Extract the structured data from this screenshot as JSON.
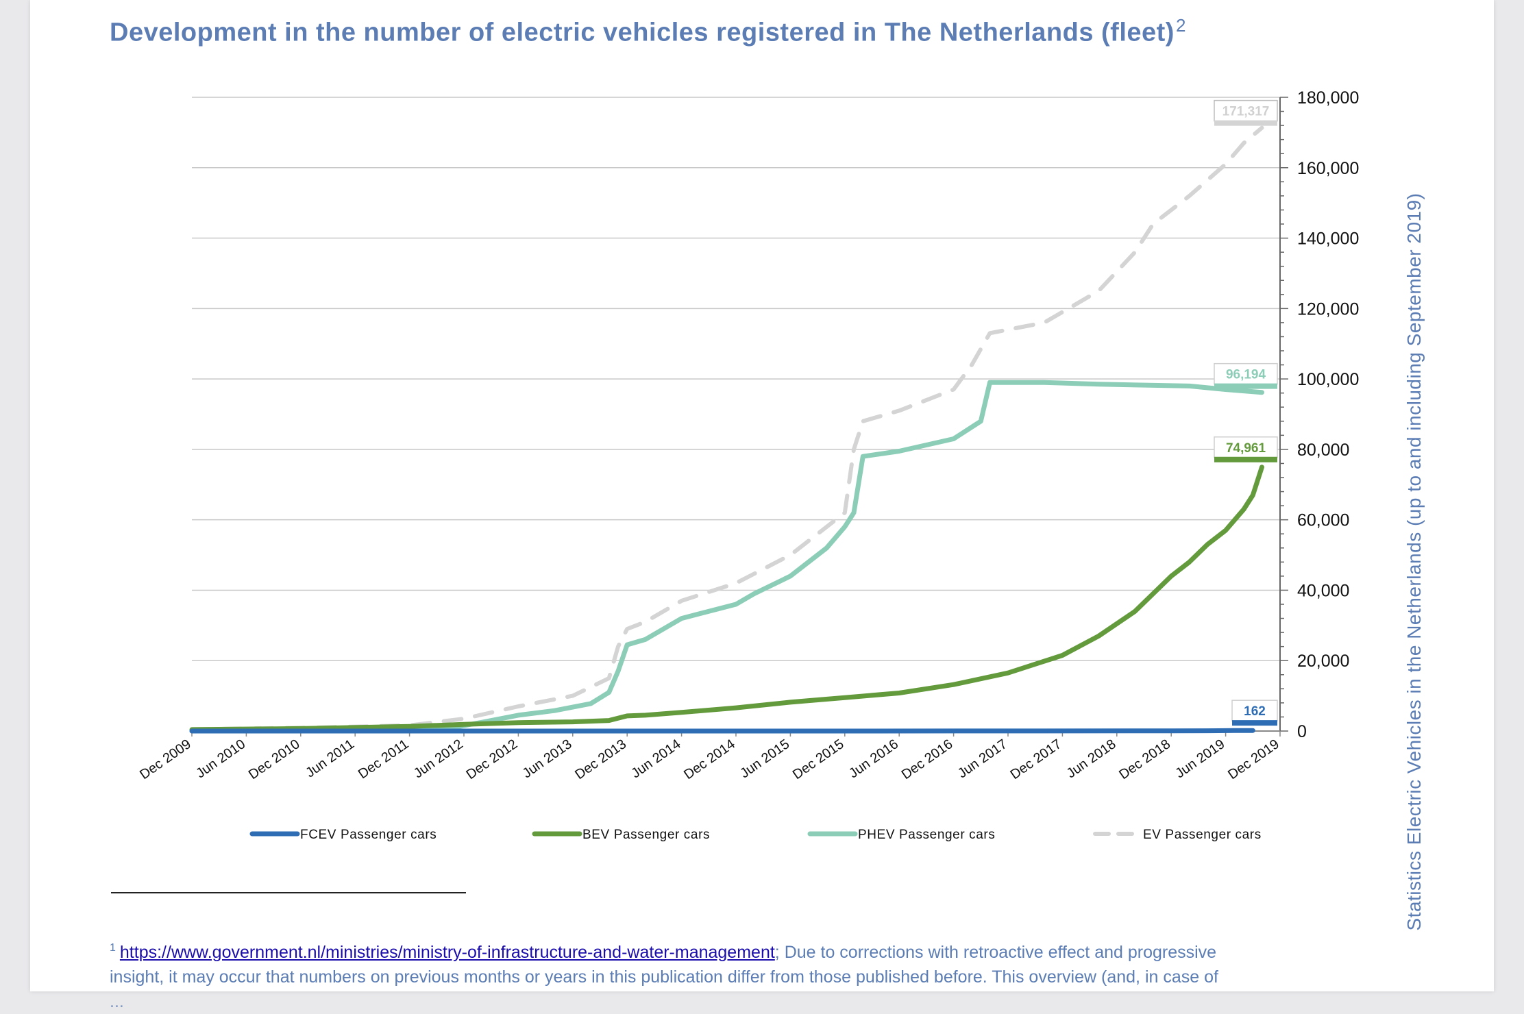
{
  "title": "Development in the number of electric vehicles registered in The Netherlands (fleet)",
  "title_footnote_marker": "2",
  "y_axis_title": "Statistics Electric Vehicles in the Netherlands (up to and including September 2019)",
  "footnote": {
    "marker": "1",
    "link_text": "https://www.government.nl/ministries/ministry-of-infrastructure-and-water-management",
    "text_line1": "; Due to corrections with retroactive effect and progressive",
    "text_line2": "insight, it may occur that numbers on previous months or years in this publication differ from those published before. This overview (and, in case of",
    "text_line3_partial": "..."
  },
  "chart_data": {
    "type": "line",
    "title": "Development in the number of electric vehicles registered in The Netherlands (fleet)",
    "ylabel": "Statistics Electric Vehicles in the Netherlands (up to and including September 2019)",
    "ylim": [
      0,
      180000
    ],
    "y_ticks": [
      0,
      20000,
      40000,
      60000,
      80000,
      100000,
      120000,
      140000,
      160000,
      180000
    ],
    "y_tick_labels": [
      "0",
      "20,000",
      "40,000",
      "60,000",
      "80,000",
      "100,000",
      "120,000",
      "140,000",
      "160,000",
      "180,000"
    ],
    "x_tick_labels": [
      "Dec 2009",
      "Jun 2010",
      "Dec 2010",
      "Jun 2011",
      "Dec 2011",
      "Jun 2012",
      "Dec 2012",
      "Jun 2013",
      "Dec 2013",
      "Jun 2014",
      "Dec 2014",
      "Jun 2015",
      "Dec 2015",
      "Jun 2016",
      "Dec 2016",
      "Jun 2017",
      "Dec 2017",
      "Jun 2018",
      "Dec 2018",
      "Jun 2019",
      "Dec 2019"
    ],
    "x_unit": "months since Dec 2009",
    "x_range": [
      0,
      120
    ],
    "legend_position": "bottom",
    "grid": true,
    "series": [
      {
        "name": "FCEV Passenger cars",
        "color": "#2e6db4",
        "style": "solid",
        "end_label": "162",
        "points": [
          [
            0,
            0
          ],
          [
            30,
            0
          ],
          [
            60,
            0
          ],
          [
            90,
            20
          ],
          [
            108,
            60
          ],
          [
            112,
            70
          ],
          [
            115,
            140
          ],
          [
            117,
            162
          ]
        ]
      },
      {
        "name": "BEV Passenger cars",
        "color": "#639a3c",
        "style": "solid",
        "end_label": "74,961",
        "points": [
          [
            0,
            400
          ],
          [
            12,
            700
          ],
          [
            24,
            1300
          ],
          [
            30,
            1900
          ],
          [
            36,
            2400
          ],
          [
            42,
            2600
          ],
          [
            46,
            3000
          ],
          [
            48,
            4300
          ],
          [
            50,
            4500
          ],
          [
            54,
            5300
          ],
          [
            60,
            6600
          ],
          [
            66,
            8200
          ],
          [
            72,
            9500
          ],
          [
            78,
            10800
          ],
          [
            84,
            13200
          ],
          [
            90,
            16500
          ],
          [
            96,
            21500
          ],
          [
            100,
            27000
          ],
          [
            104,
            34000
          ],
          [
            106,
            39000
          ],
          [
            108,
            44000
          ],
          [
            110,
            48000
          ],
          [
            112,
            53000
          ],
          [
            114,
            57000
          ],
          [
            116,
            63000
          ],
          [
            117,
            67000
          ],
          [
            118,
            74961
          ]
        ]
      },
      {
        "name": "PHEV Passenger cars",
        "color": "#8ccdb8",
        "style": "solid",
        "end_label": "96,194",
        "points": [
          [
            0,
            100
          ],
          [
            24,
            200
          ],
          [
            28,
            600
          ],
          [
            32,
            2500
          ],
          [
            36,
            4500
          ],
          [
            40,
            5800
          ],
          [
            44,
            7800
          ],
          [
            46,
            11000
          ],
          [
            47,
            17000
          ],
          [
            48,
            24500
          ],
          [
            50,
            26000
          ],
          [
            54,
            32000
          ],
          [
            60,
            36000
          ],
          [
            62,
            39000
          ],
          [
            66,
            44000
          ],
          [
            68,
            48000
          ],
          [
            70,
            52000
          ],
          [
            72,
            58000
          ],
          [
            73,
            62000
          ],
          [
            74,
            78000
          ],
          [
            78,
            79500
          ],
          [
            84,
            83000
          ],
          [
            87,
            88000
          ],
          [
            88,
            99000
          ],
          [
            94,
            99000
          ],
          [
            100,
            98500
          ],
          [
            110,
            98000
          ],
          [
            114,
            97000
          ],
          [
            118,
            96194
          ]
        ]
      },
      {
        "name": "EV Passenger cars",
        "color": "#d4d4d4",
        "style": "dashed",
        "end_label": "171,317",
        "points": [
          [
            0,
            500
          ],
          [
            12,
            900
          ],
          [
            24,
            1600
          ],
          [
            30,
            3500
          ],
          [
            36,
            7000
          ],
          [
            42,
            10000
          ],
          [
            46,
            15000
          ],
          [
            47,
            24000
          ],
          [
            48,
            29000
          ],
          [
            50,
            31000
          ],
          [
            54,
            37000
          ],
          [
            60,
            42000
          ],
          [
            66,
            50000
          ],
          [
            72,
            62000
          ],
          [
            73,
            80000
          ],
          [
            74,
            88000
          ],
          [
            78,
            91000
          ],
          [
            84,
            97000
          ],
          [
            86,
            104000
          ],
          [
            88,
            113000
          ],
          [
            94,
            116000
          ],
          [
            100,
            125000
          ],
          [
            104,
            136000
          ],
          [
            106,
            144000
          ],
          [
            110,
            152000
          ],
          [
            114,
            161000
          ],
          [
            116,
            167000
          ],
          [
            118,
            171317
          ]
        ]
      }
    ]
  }
}
